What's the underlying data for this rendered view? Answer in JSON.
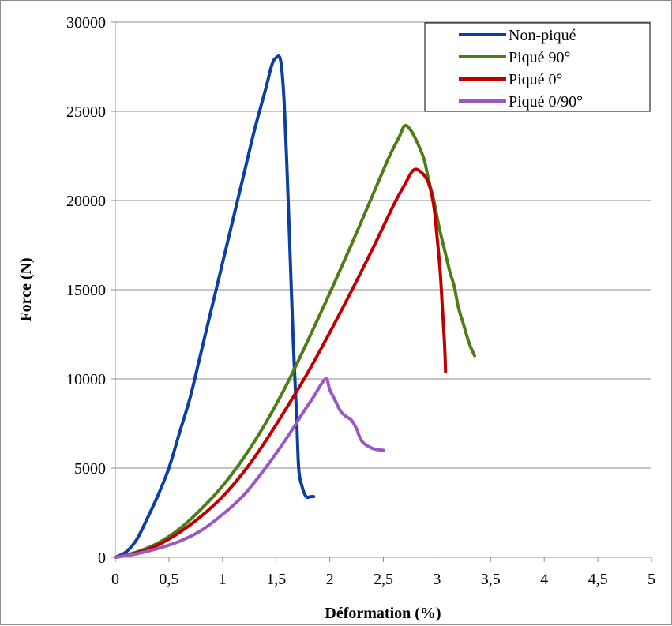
{
  "chart_data": {
    "type": "line",
    "xlabel": "Déformation (%)",
    "ylabel": "Force (N)",
    "xlim": [
      0,
      5
    ],
    "ylim": [
      0,
      30000
    ],
    "x_ticks": [
      0,
      0.5,
      1,
      1.5,
      2,
      2.5,
      3,
      3.5,
      4,
      4.5,
      5
    ],
    "x_tick_labels": [
      "0",
      "0,5",
      "1",
      "1,5",
      "2",
      "2,5",
      "3",
      "3,5",
      "4",
      "4,5",
      "5"
    ],
    "y_ticks": [
      0,
      5000,
      10000,
      15000,
      20000,
      25000,
      30000
    ],
    "y_tick_labels": [
      "0",
      "5000",
      "10000",
      "15000",
      "20000",
      "25000",
      "30000"
    ],
    "grid": "horizontal",
    "legend_position": "top-right",
    "series": [
      {
        "name": "Non-piqué",
        "color": "#0b3fa3",
        "points": [
          [
            0,
            0
          ],
          [
            0.1,
            300
          ],
          [
            0.2,
            1000
          ],
          [
            0.3,
            2200
          ],
          [
            0.4,
            3500
          ],
          [
            0.5,
            5000
          ],
          [
            0.6,
            7000
          ],
          [
            0.7,
            9000
          ],
          [
            0.8,
            11500
          ],
          [
            0.9,
            14000
          ],
          [
            1.0,
            16500
          ],
          [
            1.1,
            19000
          ],
          [
            1.2,
            21500
          ],
          [
            1.3,
            24000
          ],
          [
            1.4,
            26200
          ],
          [
            1.46,
            27600
          ],
          [
            1.5,
            28000
          ],
          [
            1.54,
            27900
          ],
          [
            1.57,
            26000
          ],
          [
            1.6,
            22000
          ],
          [
            1.63,
            17000
          ],
          [
            1.66,
            12000
          ],
          [
            1.69,
            8000
          ],
          [
            1.71,
            5000
          ],
          [
            1.74,
            4000
          ],
          [
            1.78,
            3400
          ],
          [
            1.82,
            3400
          ],
          [
            1.85,
            3400
          ]
        ]
      },
      {
        "name": "Piqué 90°",
        "color": "#4e7d18",
        "points": [
          [
            0,
            0
          ],
          [
            0.2,
            300
          ],
          [
            0.4,
            800
          ],
          [
            0.6,
            1600
          ],
          [
            0.8,
            2700
          ],
          [
            1.0,
            4000
          ],
          [
            1.2,
            5600
          ],
          [
            1.4,
            7500
          ],
          [
            1.6,
            9700
          ],
          [
            1.8,
            12200
          ],
          [
            2.0,
            14800
          ],
          [
            2.2,
            17500
          ],
          [
            2.4,
            20300
          ],
          [
            2.55,
            22400
          ],
          [
            2.65,
            23600
          ],
          [
            2.7,
            24200
          ],
          [
            2.76,
            23900
          ],
          [
            2.82,
            23200
          ],
          [
            2.88,
            22300
          ],
          [
            2.92,
            21200
          ],
          [
            2.97,
            20000
          ],
          [
            3.02,
            18500
          ],
          [
            3.08,
            17000
          ],
          [
            3.12,
            16000
          ],
          [
            3.16,
            15200
          ],
          [
            3.2,
            14000
          ],
          [
            3.25,
            13000
          ],
          [
            3.3,
            12000
          ],
          [
            3.35,
            11300
          ]
        ]
      },
      {
        "name": "Piqué 0°",
        "color": "#c00000",
        "points": [
          [
            0,
            0
          ],
          [
            0.2,
            250
          ],
          [
            0.4,
            700
          ],
          [
            0.6,
            1400
          ],
          [
            0.8,
            2300
          ],
          [
            1.0,
            3400
          ],
          [
            1.2,
            4800
          ],
          [
            1.4,
            6500
          ],
          [
            1.6,
            8400
          ],
          [
            1.8,
            10400
          ],
          [
            2.0,
            12600
          ],
          [
            2.2,
            14900
          ],
          [
            2.4,
            17300
          ],
          [
            2.6,
            19800
          ],
          [
            2.7,
            20900
          ],
          [
            2.78,
            21700
          ],
          [
            2.85,
            21600
          ],
          [
            2.92,
            21000
          ],
          [
            2.97,
            19700
          ],
          [
            3.0,
            18000
          ],
          [
            3.03,
            16000
          ],
          [
            3.05,
            14000
          ],
          [
            3.07,
            12000
          ],
          [
            3.08,
            10400
          ]
        ]
      },
      {
        "name": "Piqué 0/90°",
        "color": "#9a58c4",
        "points": [
          [
            0,
            0
          ],
          [
            0.2,
            200
          ],
          [
            0.4,
            500
          ],
          [
            0.6,
            900
          ],
          [
            0.8,
            1500
          ],
          [
            1.0,
            2400
          ],
          [
            1.2,
            3500
          ],
          [
            1.4,
            5000
          ],
          [
            1.6,
            6700
          ],
          [
            1.75,
            8100
          ],
          [
            1.85,
            9000
          ],
          [
            1.92,
            9700
          ],
          [
            1.97,
            10000
          ],
          [
            2.0,
            9400
          ],
          [
            2.05,
            8800
          ],
          [
            2.1,
            8200
          ],
          [
            2.15,
            7900
          ],
          [
            2.2,
            7700
          ],
          [
            2.25,
            7200
          ],
          [
            2.3,
            6500
          ],
          [
            2.4,
            6100
          ],
          [
            2.5,
            6000
          ]
        ]
      }
    ]
  }
}
